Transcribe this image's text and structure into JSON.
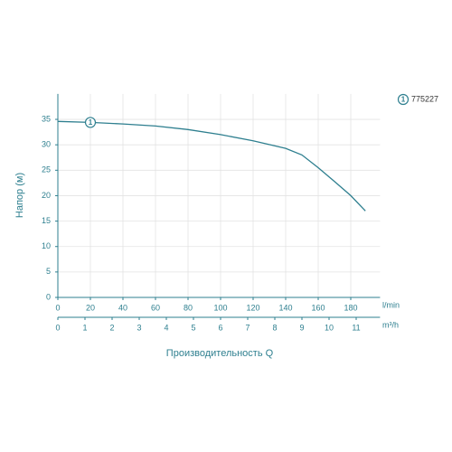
{
  "chart_data": {
    "type": "line",
    "ylabel": "Напор (м)",
    "xlabel": "Производительность Q",
    "xunit": "l/min",
    "x2unit": "m³/h",
    "x": [
      0,
      20,
      40,
      60,
      80,
      100,
      120,
      140,
      150,
      160,
      170,
      180,
      189
    ],
    "series": [
      {
        "name": "775227",
        "color": "#2e7f8f",
        "marker_label": "1",
        "marker_index": 1,
        "values": [
          34.6,
          34.4,
          34.1,
          33.7,
          33.0,
          32.0,
          30.8,
          29.3,
          28.0,
          25.5,
          22.8,
          20.0,
          17.0
        ]
      }
    ],
    "xlim": [
      0,
      198
    ],
    "xticks": [
      0,
      20,
      40,
      60,
      80,
      100,
      120,
      140,
      160,
      180
    ],
    "x2lim": [
      0,
      11.88
    ],
    "x2ticks": [
      0,
      1,
      2,
      3,
      4,
      5,
      6,
      7,
      8,
      9,
      10,
      11
    ],
    "ylim": [
      0,
      40
    ],
    "yticks": [
      0,
      5,
      10,
      15,
      20,
      25,
      30,
      35
    ],
    "grid": true
  }
}
